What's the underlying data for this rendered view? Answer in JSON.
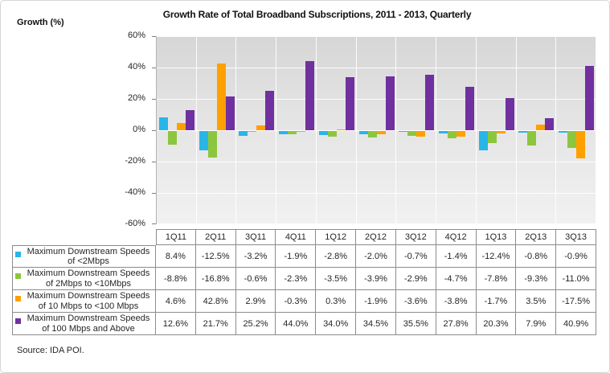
{
  "chart": {
    "title": "Growth Rate of Total Broadband Subscriptions, 2011 - 2013, Quarterly",
    "y_axis_title": "Growth (%)"
  },
  "source": "Source: IDA POI.",
  "chart_data": {
    "type": "bar",
    "title": "Growth Rate of Total Broadband Subscriptions, 2011 - 2013, Quarterly",
    "ylabel": "Growth (%)",
    "xlabel": "",
    "ylim": [
      -60,
      60
    ],
    "ytick_step": 20,
    "ytick_labels": [
      "60%",
      "40%",
      "20%",
      "0%",
      "-20%",
      "-40%",
      "-60%"
    ],
    "grid": true,
    "legend_position": "data-table-left",
    "categories": [
      "1Q11",
      "2Q11",
      "3Q11",
      "4Q11",
      "1Q12",
      "2Q12",
      "3Q12",
      "4Q12",
      "1Q13",
      "2Q13",
      "3Q13"
    ],
    "series": [
      {
        "name": "Maximum Downstream Speeds of <2Mbps",
        "color": "#29B5E8",
        "values": [
          8.4,
          -12.5,
          -3.2,
          -1.9,
          -2.8,
          -2.0,
          -0.7,
          -1.4,
          -12.4,
          -0.8,
          -0.9
        ]
      },
      {
        "name": "Maximum Downstream Speeds of 2Mbps to <10Mbps",
        "color": "#8CC63F",
        "values": [
          -8.8,
          -16.8,
          -0.6,
          -2.3,
          -3.5,
          -3.9,
          -2.9,
          -4.7,
          -7.8,
          -9.3,
          -11.0
        ]
      },
      {
        "name": "Maximum Downstream Speeds of 10 Mbps to <100 Mbps",
        "color": "#FFA000",
        "values": [
          4.6,
          42.8,
          2.9,
          -0.3,
          0.3,
          -1.9,
          -3.6,
          -3.8,
          -1.7,
          3.5,
          -17.5
        ]
      },
      {
        "name": "Maximum Downstream Speeds of 100 Mbps and Above",
        "color": "#7030A0",
        "values": [
          12.6,
          21.7,
          25.2,
          44.0,
          34.0,
          34.5,
          35.5,
          27.8,
          20.3,
          7.9,
          40.9
        ]
      }
    ],
    "value_format": "one_decimal_percent"
  }
}
